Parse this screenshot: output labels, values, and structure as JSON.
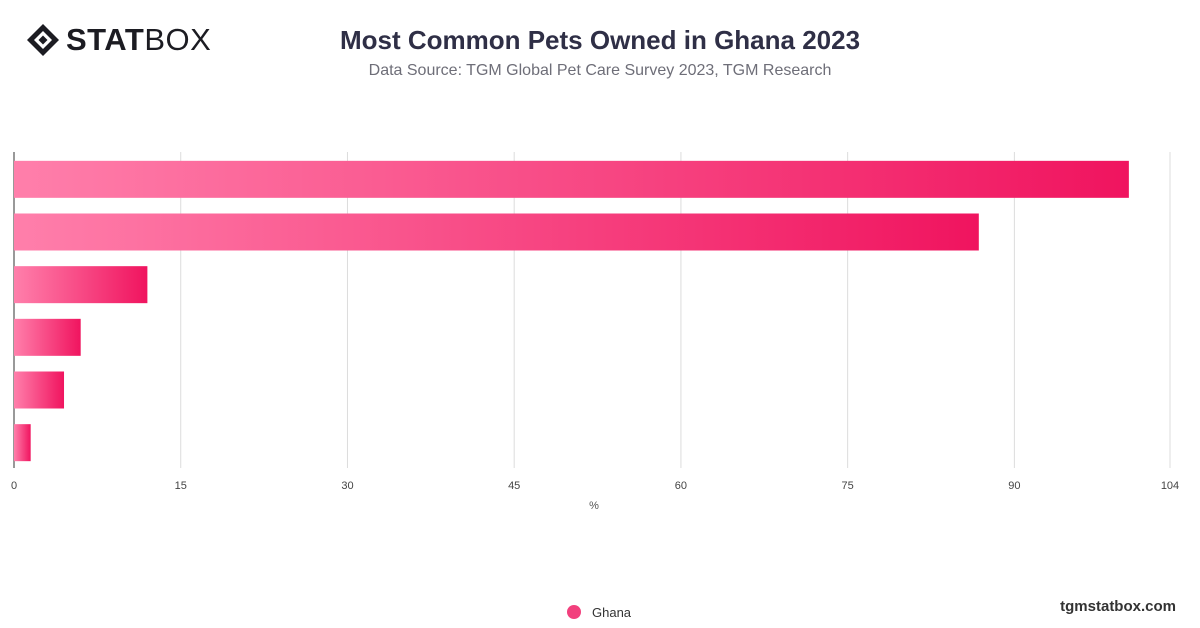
{
  "logo": {
    "bold": "STAT",
    "light": "BOX"
  },
  "header": {
    "title": "Most Common Pets Owned in Ghana 2023",
    "subtitle": "Data Source: TGM Global Pet Care Survey 2023, TGM Research"
  },
  "legend": {
    "label": "Ghana",
    "color": "#f2407d"
  },
  "footer": {
    "site": "tgmstatbox.com"
  },
  "chart_data": {
    "type": "bar",
    "orientation": "horizontal",
    "title": "Most Common Pets Owned in Ghana 2023",
    "xlabel": "%",
    "ylabel": "",
    "xlim": [
      0,
      104
    ],
    "xticks": [
      0,
      15,
      30,
      45,
      60,
      75,
      90,
      104
    ],
    "grid": true,
    "legend_position": "bottom",
    "colors": {
      "bar_start": "#ff7fab",
      "bar_end": "#f0145f"
    },
    "series": [
      {
        "name": "Ghana",
        "values": [
          100.3,
          86.8,
          12.0,
          6.0,
          4.5,
          1.5
        ]
      }
    ]
  }
}
